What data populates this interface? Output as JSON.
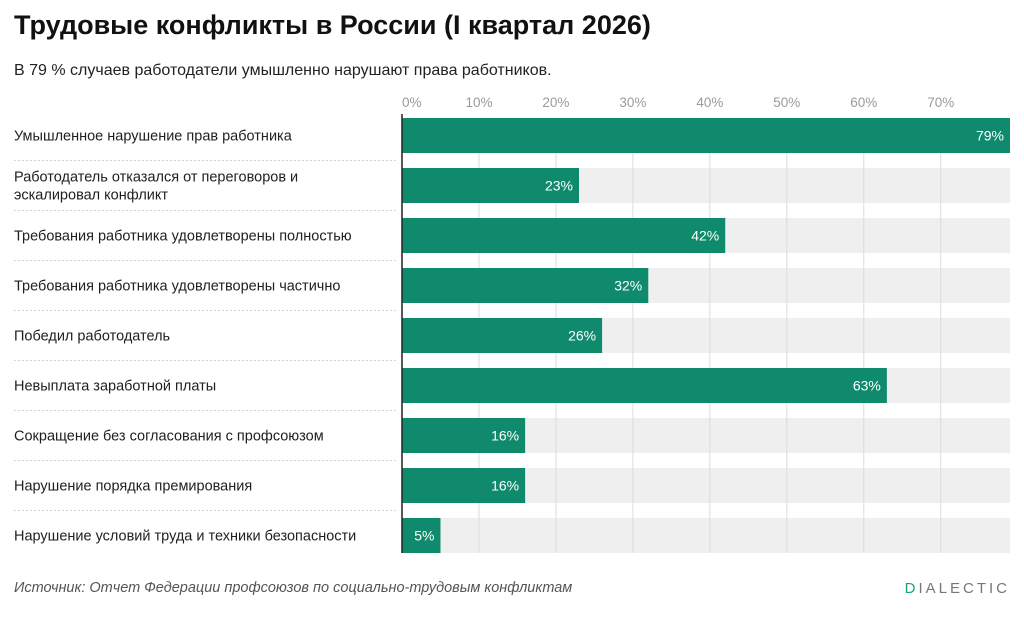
{
  "title": "Трудовые конфликты в России (I квартал 2026)",
  "subtitle": "В 79 % случаев работодатели умышленно нарушают права работников.",
  "source": "Источник: Отчет Федерации профсоюзов по социально-трудовым конфликтам",
  "brand": {
    "first_letter": "D",
    "rest": "IALECTIC"
  },
  "colors": {
    "bar": "#0f8a6d",
    "track": "#efefef",
    "grid": "#dcdcdc",
    "separator": "#d4d4d4"
  },
  "chart_data": {
    "type": "bar",
    "orientation": "horizontal",
    "xlim": [
      0,
      79
    ],
    "ticks": [
      0,
      10,
      20,
      30,
      40,
      50,
      60,
      70
    ],
    "tick_labels": [
      "0%",
      "10%",
      "20%",
      "30%",
      "40%",
      "50%",
      "60%",
      "70%"
    ],
    "axis_position": "top",
    "grid": true,
    "categories": [
      "Умышленное нарушение прав работника",
      "Работодатель отказался от переговоров и эскалировал конфликт",
      "Требования работника удовлетворены полностью",
      "Требования работника удовлетворены частично",
      "Победил работодатель",
      "Невыплата заработной платы",
      "Сокращение без согласования с профсоюзом",
      "Нарушение порядка премирования",
      "Нарушение условий труда и техники безопасности"
    ],
    "category_lines": [
      [
        "Умышленное нарушение прав работника"
      ],
      [
        "Работодатель отказался от переговоров и",
        "эскалировал конфликт"
      ],
      [
        "Требования работника удовлетворены полностью"
      ],
      [
        "Требования работника удовлетворены частично"
      ],
      [
        "Победил работодатель"
      ],
      [
        "Невыплата заработной платы"
      ],
      [
        "Сокращение без согласования с профсоюзом"
      ],
      [
        "Нарушение порядка премирования"
      ],
      [
        "Нарушение условий труда и техники безопасности"
      ]
    ],
    "values": [
      79,
      23,
      42,
      32,
      26,
      63,
      16,
      16,
      5
    ],
    "value_labels": [
      "79%",
      "23%",
      "42%",
      "32%",
      "26%",
      "63%",
      "16%",
      "16%",
      "5%"
    ]
  }
}
